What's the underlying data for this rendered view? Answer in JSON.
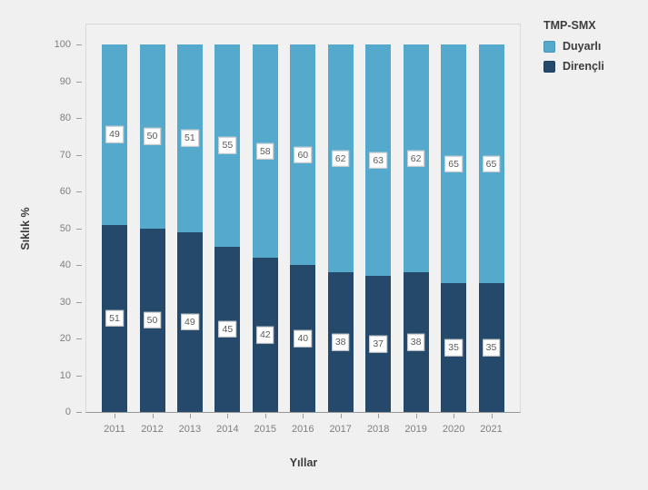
{
  "legend": {
    "title": "TMP-SMX",
    "items": [
      {
        "label": "Duyarlı",
        "color": "#55a9cc"
      },
      {
        "label": "Dirençli",
        "color": "#24496b"
      }
    ]
  },
  "axes": {
    "x_title": "Yıllar",
    "y_title": "Sıklık %"
  },
  "chart_data": {
    "type": "bar",
    "stacked": true,
    "title": "",
    "xlabel": "Yıllar",
    "ylabel": "Sıklık %",
    "ylim": [
      0,
      100
    ],
    "yticks": [
      0,
      10,
      20,
      30,
      40,
      50,
      60,
      70,
      80,
      90,
      100
    ],
    "categories": [
      "2011",
      "2012",
      "2013",
      "2014",
      "2015",
      "2016",
      "2017",
      "2018",
      "2019",
      "2020",
      "2021"
    ],
    "series": [
      {
        "name": "Duyarlı",
        "color": "#55a9cc",
        "values": [
          49,
          50,
          51,
          55,
          58,
          60,
          62,
          63,
          62,
          65,
          65
        ]
      },
      {
        "name": "Dirençli",
        "color": "#24496b",
        "values": [
          51,
          50,
          49,
          45,
          42,
          40,
          38,
          37,
          38,
          35,
          35
        ]
      }
    ],
    "grid": false,
    "value_labels": true,
    "legend_position": "top-right",
    "legend_title": "TMP-SMX"
  },
  "colors": {
    "background": "#f0f0f1",
    "panel_border": "#d9d9d9",
    "axis_line": "#979797",
    "tick_mark": "#9b9b9b",
    "tick_text": "#7f7f7f",
    "title_text": "#3d3d3d",
    "label_box_bg": "#ffffff",
    "label_box_border": "#c7c7c7",
    "label_text": "#5a5a5a"
  }
}
